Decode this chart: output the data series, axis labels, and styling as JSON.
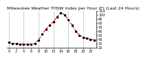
{
  "title": "Milwaukee Weather THSW Index per Hour (F) (Last 24 Hours)",
  "x_values": [
    0,
    1,
    2,
    3,
    4,
    5,
    6,
    7,
    8,
    9,
    10,
    11,
    12,
    13,
    14,
    15,
    16,
    17,
    18,
    19,
    20,
    21,
    22,
    23
  ],
  "y_values": [
    32,
    30,
    29,
    28,
    28,
    27,
    28,
    30,
    38,
    52,
    65,
    75,
    82,
    95,
    105,
    100,
    88,
    75,
    60,
    50,
    45,
    42,
    40,
    38
  ],
  "line_color": "#ff0000",
  "marker_color": "#000000",
  "background_color": "#ffffff",
  "grid_color": "#888888",
  "ylim": [
    20,
    110
  ],
  "xlim": [
    -0.5,
    23.5
  ],
  "yticks": [
    20,
    30,
    40,
    50,
    60,
    70,
    80,
    90,
    100,
    110
  ],
  "ytick_labels": [
    "20",
    "30",
    "40",
    "50",
    "60",
    "70",
    "80",
    "90",
    "100",
    "110"
  ],
  "xticks": [
    0,
    2,
    4,
    6,
    8,
    10,
    12,
    14,
    16,
    18,
    20,
    22
  ],
  "xtick_labels": [
    "0",
    "2",
    "4",
    "6",
    "8",
    "10",
    "12",
    "14",
    "16",
    "18",
    "20",
    "22"
  ],
  "vgrid_xticks": [
    0,
    4,
    8,
    12,
    16,
    20
  ],
  "title_fontsize": 4.5,
  "tick_fontsize": 3.5,
  "line_width": 0.8,
  "marker_size": 1.5
}
